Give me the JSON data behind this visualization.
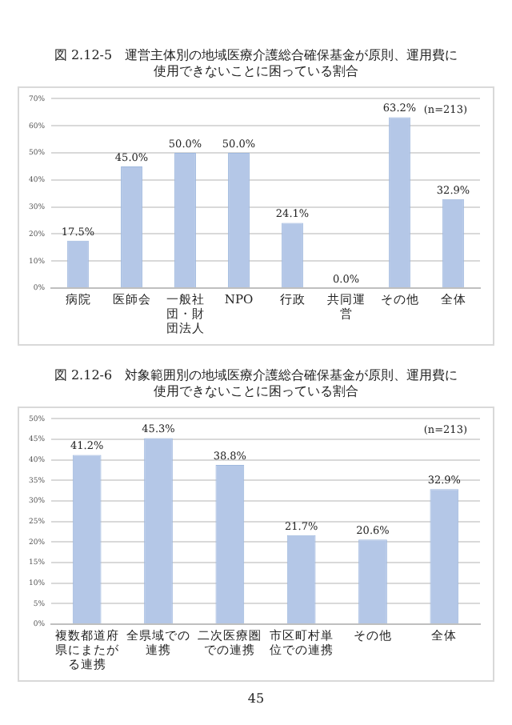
{
  "chart_data": [
    {
      "type": "bar",
      "title": "図 2.12-5　運営主体別の地域医療介護総合確保基金が原則、運用費に使用できないことに困っている割合",
      "categories": [
        "病院",
        "医師会",
        "一般社団・財団法人",
        "NPO",
        "行政",
        "共同運営",
        "その他",
        "全体"
      ],
      "values": [
        17.5,
        45.0,
        50.0,
        50.0,
        24.1,
        0.0,
        63.2,
        32.9
      ],
      "value_labels": [
        "17.5%",
        "45.0%",
        "50.0%",
        "50.0%",
        "24.1%",
        "0.0%",
        "63.2%",
        "32.9%"
      ],
      "color": "#b4c7e7",
      "ylim": [
        0,
        70
      ],
      "yticks": [
        {
          "value": 0,
          "label": "0%"
        },
        {
          "value": 10,
          "label": "10%"
        },
        {
          "value": 20,
          "label": "20%"
        },
        {
          "value": 30,
          "label": "30%"
        },
        {
          "value": 40,
          "label": "40%"
        },
        {
          "value": 50,
          "label": "50%"
        },
        {
          "value": 60,
          "label": "60%"
        },
        {
          "value": 70,
          "label": "70%"
        }
      ],
      "grid": "y",
      "annotations": [
        "(n=213)"
      ]
    },
    {
      "type": "bar",
      "title": "図 2.12-6　対象範囲別の地域医療介護総合確保基金が原則、運用費に使用できないことに困っている割合",
      "categories": [
        "複数都道府県にまたがる連携",
        "全県域での連携",
        "二次医療圏での連携",
        "市区町村単位での連携",
        "その他",
        "全体"
      ],
      "values": [
        41.2,
        45.3,
        38.8,
        21.7,
        20.6,
        32.9
      ],
      "value_labels": [
        "41.2%",
        "45.3%",
        "38.8%",
        "21.7%",
        "20.6%",
        "32.9%"
      ],
      "color": "#b4c7e7",
      "ylim": [
        0,
        50
      ],
      "yticks": [
        {
          "value": 0,
          "label": "0%"
        },
        {
          "value": 5,
          "label": "5%"
        },
        {
          "value": 10,
          "label": "10%"
        },
        {
          "value": 15,
          "label": "15%"
        },
        {
          "value": 20,
          "label": "20%"
        },
        {
          "value": 25,
          "label": "25%"
        },
        {
          "value": 30,
          "label": "30%"
        },
        {
          "value": 35,
          "label": "35%"
        },
        {
          "value": 40,
          "label": "40%"
        },
        {
          "value": 45,
          "label": "45%"
        },
        {
          "value": 50,
          "label": "50%"
        }
      ],
      "grid": "y",
      "annotations": [
        "(n=213)",
        "45"
      ]
    }
  ]
}
